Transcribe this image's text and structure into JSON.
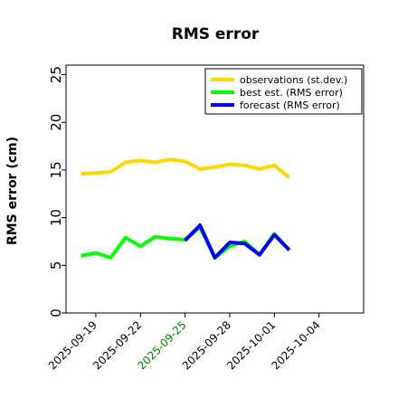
{
  "chart_data": {
    "type": "line",
    "title": "RMS error",
    "ylabel": "RMS error (cm)",
    "xlabel": "",
    "ylim": [
      0,
      26
    ],
    "yticks": [
      0,
      5,
      10,
      15,
      20,
      25
    ],
    "xlim": [
      "2025-09-17",
      "2025-10-07"
    ],
    "x": [
      "2025-09-18",
      "2025-09-19",
      "2025-09-20",
      "2025-09-21",
      "2025-09-22",
      "2025-09-23",
      "2025-09-24",
      "2025-09-25",
      "2025-09-26",
      "2025-09-27",
      "2025-09-28",
      "2025-09-29",
      "2025-09-30",
      "2025-10-01",
      "2025-10-02"
    ],
    "xtick_labels": [
      {
        "date": "2025-09-19",
        "label": "2025-09-19",
        "color": "#000000"
      },
      {
        "date": "2025-09-22",
        "label": "2025-09-22",
        "color": "#000000"
      },
      {
        "date": "2025-09-25",
        "label": "2025-09-25",
        "color": "#008000"
      },
      {
        "date": "2025-09-28",
        "label": "2025-09-28",
        "color": "#000000"
      },
      {
        "date": "2025-10-01",
        "label": "2025-10-01",
        "color": "#000000"
      },
      {
        "date": "2025-10-04",
        "label": "2025-10-04",
        "color": "#000000"
      }
    ],
    "series": [
      {
        "name": "observations (st.dev.)",
        "color": "#ffd700",
        "x": [
          "2025-09-18",
          "2025-09-19",
          "2025-09-20",
          "2025-09-21",
          "2025-09-22",
          "2025-09-23",
          "2025-09-24",
          "2025-09-25",
          "2025-09-26",
          "2025-09-27",
          "2025-09-28",
          "2025-09-29",
          "2025-09-30",
          "2025-10-01",
          "2025-10-02"
        ],
        "values": [
          14.6,
          14.7,
          14.8,
          15.8,
          16.0,
          15.8,
          16.1,
          15.9,
          15.1,
          15.3,
          15.6,
          15.5,
          15.1,
          15.5,
          14.2
        ]
      },
      {
        "name": "best est. (RMS error)",
        "color": "#00ff00",
        "x": [
          "2025-09-18",
          "2025-09-19",
          "2025-09-20",
          "2025-09-21",
          "2025-09-22",
          "2025-09-23",
          "2025-09-24",
          "2025-09-25",
          "2025-09-26",
          "2025-09-27",
          "2025-09-28",
          "2025-09-29",
          "2025-09-30",
          "2025-10-01",
          "2025-10-02"
        ],
        "values": [
          6.0,
          6.3,
          5.8,
          7.9,
          7.0,
          8.0,
          7.8,
          7.7,
          9.0,
          5.8,
          7.0,
          7.5,
          6.1,
          8.3,
          6.6
        ]
      },
      {
        "name": "forecast (RMS error)",
        "color": "#0000ff",
        "x": [
          "2025-09-25",
          "2025-09-26",
          "2025-09-27",
          "2025-09-28",
          "2025-09-29",
          "2025-09-30",
          "2025-10-01",
          "2025-10-02"
        ],
        "values": [
          7.6,
          9.2,
          5.8,
          7.4,
          7.3,
          6.1,
          8.2,
          6.6
        ]
      }
    ],
    "legend": "top-right",
    "grid": false
  }
}
